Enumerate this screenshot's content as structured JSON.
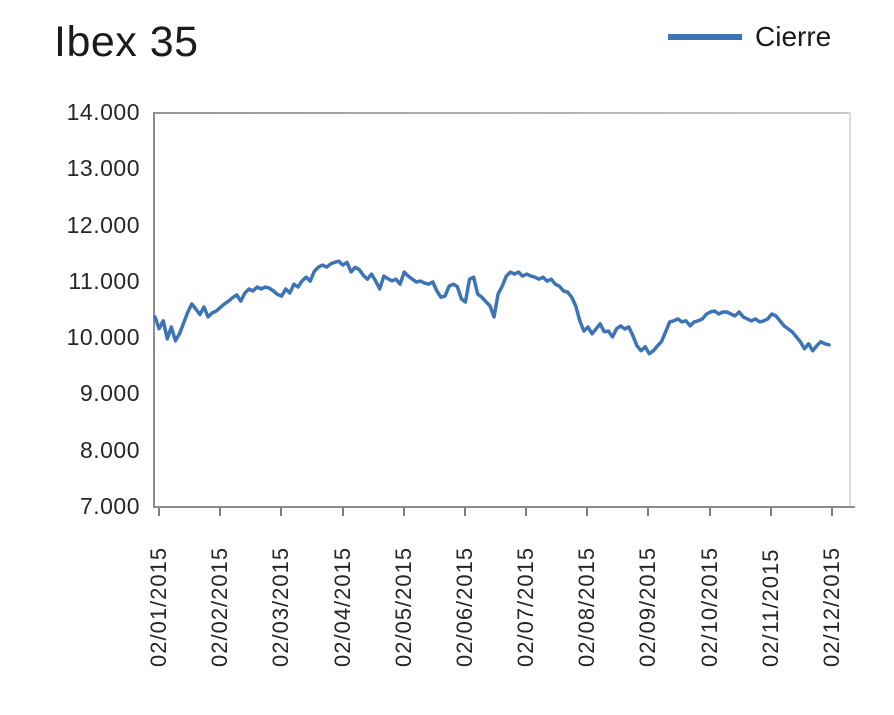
{
  "title": "Ibex 35",
  "legend": {
    "label": "Cierre"
  },
  "colors": {
    "line": "#3d74b6",
    "axis": "#8c8c8c",
    "tick": "#7f7f7f",
    "title_text": "#1b1b1b",
    "axis_text": "#262626",
    "background": "#ffffff"
  },
  "chart_data": {
    "type": "line",
    "title": "Ibex 35",
    "xlabel": "",
    "ylabel": "",
    "grid": false,
    "legend_position": "top-right",
    "ylim": [
      7000,
      14000
    ],
    "y_ticks": [
      7000,
      8000,
      9000,
      10000,
      11000,
      12000,
      13000,
      14000
    ],
    "y_tick_labels": [
      "7.000",
      "8.000",
      "9.000",
      "10.000",
      "11.000",
      "12.000",
      "13.000",
      "14.000"
    ],
    "x_tick_labels": [
      "02/01/2015",
      "02/02/2015",
      "02/03/2015",
      "02/04/2015",
      "02/05/2015",
      "02/06/2015",
      "02/07/2015",
      "02/08/2015",
      "02/09/2015",
      "02/10/2015",
      "02/11/2015",
      "02/12/2015"
    ],
    "series": [
      {
        "name": "Cierre",
        "color": "#3d74b6",
        "values": [
          10360,
          10150,
          10290,
          9970,
          10180,
          9935,
          10060,
          10250,
          10440,
          10590,
          10500,
          10400,
          10535,
          10360,
          10430,
          10465,
          10530,
          10590,
          10640,
          10700,
          10750,
          10640,
          10785,
          10855,
          10820,
          10890,
          10855,
          10890,
          10870,
          10820,
          10760,
          10730,
          10855,
          10785,
          10940,
          10890,
          11000,
          11065,
          10995,
          11170,
          11245,
          11280,
          11245,
          11300,
          11330,
          11350,
          11280,
          11330,
          11160,
          11240,
          11200,
          11100,
          11030,
          11120,
          11000,
          10855,
          11085,
          11040,
          11000,
          11030,
          10940,
          11155,
          11085,
          11030,
          10980,
          10995,
          10960,
          10940,
          10980,
          10820,
          10710,
          10730,
          10905,
          10940,
          10900,
          10680,
          10625,
          11030,
          11065,
          10765,
          10710,
          10630,
          10555,
          10360,
          10765,
          10905,
          11085,
          11155,
          11120,
          11155,
          11085,
          11120,
          11085,
          11065,
          11030,
          11065,
          10995,
          11030,
          10940,
          10905,
          10820,
          10800,
          10710,
          10555,
          10290,
          10110,
          10180,
          10060,
          10150,
          10235,
          10095,
          10110,
          10005,
          10150,
          10200,
          10145,
          10180,
          10025,
          9845,
          9760,
          9830,
          9705,
          9760,
          9845,
          9920,
          10095,
          10270,
          10290,
          10325,
          10270,
          10290,
          10200,
          10270,
          10290,
          10325,
          10410,
          10447,
          10465,
          10412,
          10447,
          10447,
          10412,
          10377,
          10447,
          10360,
          10324,
          10289,
          10324,
          10271,
          10289,
          10324,
          10412,
          10377,
          10289,
          10200,
          10147,
          10094,
          10006,
          9918,
          9794,
          9882,
          9758,
          9847,
          9918,
          9882,
          9864
        ]
      }
    ]
  }
}
